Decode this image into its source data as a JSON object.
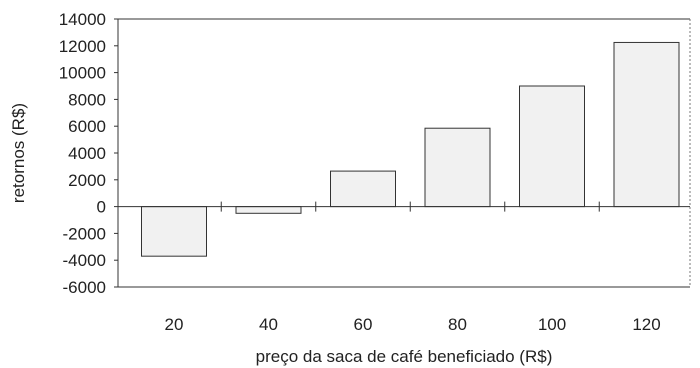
{
  "chart_data": {
    "type": "bar",
    "categories": [
      "20",
      "40",
      "60",
      "80",
      "100",
      "120"
    ],
    "values": [
      -3700,
      -500,
      2650,
      5850,
      9000,
      12250
    ],
    "xlabel": "preço da saca de café  beneficiado (R$)",
    "ylabel": "retornos (R$)",
    "ylim": [
      -6000,
      14000
    ],
    "yticks": [
      "14000",
      "12000",
      "10000",
      "8000",
      "6000",
      "4000",
      "2000",
      "0",
      "-2000",
      "-4000",
      "-6000"
    ],
    "grid": false,
    "colors": {
      "bar_fill": "#f1f1f1",
      "bar_stroke": "#333333",
      "axis": "#333333"
    }
  }
}
